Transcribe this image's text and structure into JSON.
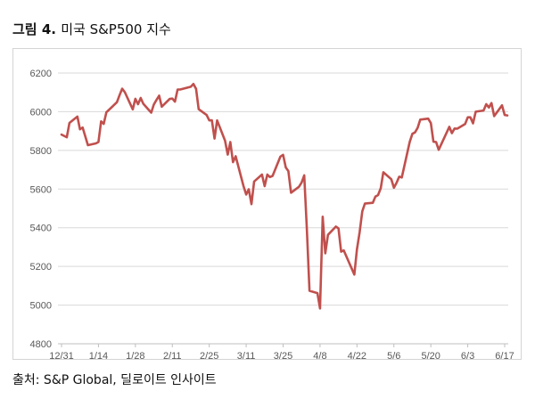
{
  "figure": {
    "number_label": "그림 4.",
    "title": "미국 S&P500 지수"
  },
  "source_text": "출처: S&P Global, 딜로이트 인사이트",
  "colors": {
    "line": "#c0504d",
    "gridline": "#d9d9d9",
    "axis_text": "#595959",
    "axis_line": "#bfbfbf"
  },
  "chart_data": {
    "type": "line",
    "title": "",
    "xlabel": "",
    "ylabel": "",
    "ylim": [
      4800,
      6200
    ],
    "yticks": [
      4800,
      5000,
      5200,
      5400,
      5600,
      5800,
      6000,
      6200
    ],
    "categories_ticks": [
      "12/31",
      "1/14",
      "1/28",
      "2/11",
      "2/25",
      "3/11",
      "3/25",
      "4/8",
      "4/22",
      "5/6",
      "5/20",
      "6/3",
      "6/17"
    ],
    "grid": true,
    "legend": "none",
    "series": [
      {
        "name": "",
        "x": [
          "12/31",
          "1/2",
          "1/3",
          "1/6",
          "1/7",
          "1/8",
          "1/10",
          "1/13",
          "1/14",
          "1/15",
          "1/16",
          "1/17",
          "1/21",
          "1/22",
          "1/23",
          "1/24",
          "1/27",
          "1/28",
          "1/29",
          "1/30",
          "1/31",
          "2/3",
          "2/4",
          "2/5",
          "2/6",
          "2/7",
          "2/10",
          "2/11",
          "2/12",
          "2/13",
          "2/14",
          "2/18",
          "2/19",
          "2/20",
          "2/21",
          "2/24",
          "2/25",
          "2/26",
          "2/27",
          "2/28",
          "3/3",
          "3/4",
          "3/5",
          "3/6",
          "3/7",
          "3/10",
          "3/11",
          "3/12",
          "3/13",
          "3/14",
          "3/17",
          "3/18",
          "3/19",
          "3/20",
          "3/21",
          "3/24",
          "3/25",
          "3/26",
          "3/27",
          "3/28",
          "3/31",
          "4/1",
          "4/2",
          "4/3",
          "4/4",
          "4/7",
          "4/8",
          "4/9",
          "4/10",
          "4/11",
          "4/14",
          "4/15",
          "4/16",
          "4/17",
          "4/21",
          "4/22",
          "4/23",
          "4/24",
          "4/25",
          "4/28",
          "4/29",
          "4/30",
          "5/1",
          "5/2",
          "5/5",
          "5/6",
          "5/7",
          "5/8",
          "5/9",
          "5/12",
          "5/13",
          "5/14",
          "5/15",
          "5/16",
          "5/19",
          "5/20",
          "5/21",
          "5/22",
          "5/23",
          "5/27",
          "5/28",
          "5/29",
          "5/30",
          "6/2",
          "6/3",
          "6/4",
          "6/5",
          "6/6",
          "6/9",
          "6/10",
          "6/11",
          "6/12",
          "6/13",
          "6/16",
          "6/17",
          "6/18"
        ],
        "values": [
          5882,
          5868,
          5942,
          5975,
          5909,
          5918,
          5827,
          5836,
          5843,
          5950,
          5937,
          5997,
          6049,
          6086,
          6119,
          6101,
          6012,
          6067,
          6039,
          6071,
          6041,
          5995,
          6037,
          6061,
          6083,
          6026,
          6066,
          6068,
          6052,
          6115,
          6115,
          6129,
          6144,
          6118,
          6013,
          5983,
          5955,
          5956,
          5861,
          5955,
          5850,
          5778,
          5843,
          5739,
          5770,
          5615,
          5572,
          5599,
          5522,
          5639,
          5675,
          5615,
          5675,
          5662,
          5668,
          5768,
          5777,
          5712,
          5693,
          5581,
          5612,
          5633,
          5671,
          5397,
          5074,
          5062,
          4983,
          5457,
          5268,
          5363,
          5406,
          5397,
          5276,
          5283,
          5158,
          5288,
          5376,
          5485,
          5525,
          5529,
          5561,
          5569,
          5604,
          5687,
          5651,
          5607,
          5632,
          5664,
          5660,
          5844,
          5886,
          5893,
          5917,
          5959,
          5964,
          5941,
          5845,
          5843,
          5803,
          5922,
          5889,
          5913,
          5912,
          5936,
          5971,
          5971,
          5940,
          6000,
          6006,
          6039,
          6022,
          6045,
          5977,
          6033,
          5983,
          5981
        ]
      }
    ]
  }
}
